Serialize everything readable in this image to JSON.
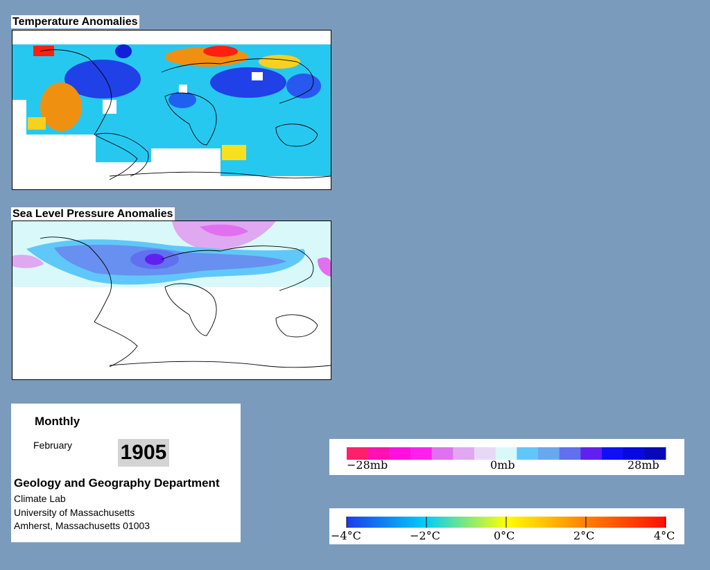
{
  "maps": {
    "temperature": {
      "title": "Temperature Anomalies"
    },
    "pressure": {
      "title": "Sea Level Pressure Anomalies"
    }
  },
  "info": {
    "period": "Monthly",
    "month": "February",
    "year": "1905",
    "department": "Geology and Geography Department",
    "lab": "Climate Lab",
    "university": "University of Massachusetts",
    "address": "Amherst, Massachusetts 01003"
  },
  "legends": {
    "pressure": {
      "labels": [
        "−28mb",
        "0mb",
        "28mb"
      ],
      "colors": [
        "#ff1f6b",
        "#ff10b0",
        "#ff10e0",
        "#ff20f0",
        "#e070f0",
        "#e0a8f0",
        "#e8d8f8",
        "#d8f8fa",
        "#60c8f8",
        "#68a8f0",
        "#6070f0",
        "#6020f0",
        "#1010f8",
        "#0808e0",
        "#0808b8"
      ]
    },
    "temperature": {
      "labels": [
        "−4°C",
        "−2°C",
        "0°C",
        "2°C",
        "4°C"
      ],
      "gradient": [
        "#1a3cf0",
        "#00d0f8",
        "#ffff00",
        "#ff8000",
        "#ff1000"
      ]
    }
  }
}
